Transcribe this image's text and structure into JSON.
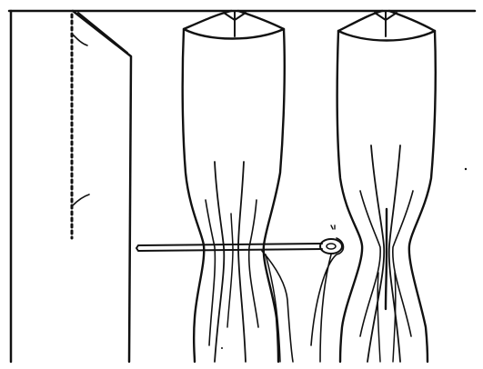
{
  "figure": {
    "ink_color": "#111111",
    "background_color": "#ffffff",
    "parts": [
      "top-rail",
      "flat-panel-with-basting",
      "gathered-pleat-with-needle",
      "finished-gathered-pleat"
    ]
  }
}
